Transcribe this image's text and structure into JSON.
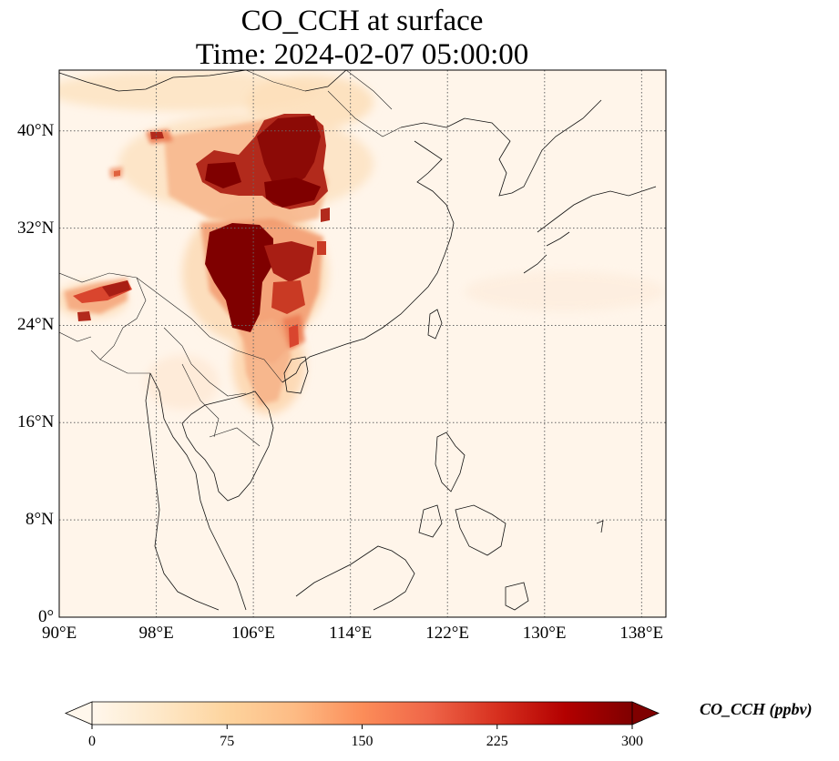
{
  "title": {
    "line1": "CO_CCH at surface",
    "line2": "Time: 2024-02-07 05:00:00"
  },
  "map": {
    "lon_range": [
      90,
      140
    ],
    "lat_range": [
      0,
      45
    ],
    "x_ticks": [
      "90°E",
      "98°E",
      "106°E",
      "114°E",
      "122°E",
      "130°E",
      "138°E"
    ],
    "x_tick_values": [
      90,
      98,
      106,
      114,
      122,
      130,
      138
    ],
    "y_ticks": [
      "0°",
      "8°N",
      "16°N",
      "24°N",
      "32°N",
      "40°N"
    ],
    "y_tick_values": [
      0,
      8,
      16,
      24,
      32,
      40
    ],
    "gridlines": "dotted",
    "colormap": "OrRd"
  },
  "colorbar": {
    "label": "CO_CCH (ppbv)",
    "ticks": [
      "0",
      "75",
      "150",
      "225",
      "300"
    ],
    "tick_values": [
      0,
      75,
      150,
      225,
      300
    ],
    "range": [
      0,
      300
    ],
    "extend": "both"
  }
}
